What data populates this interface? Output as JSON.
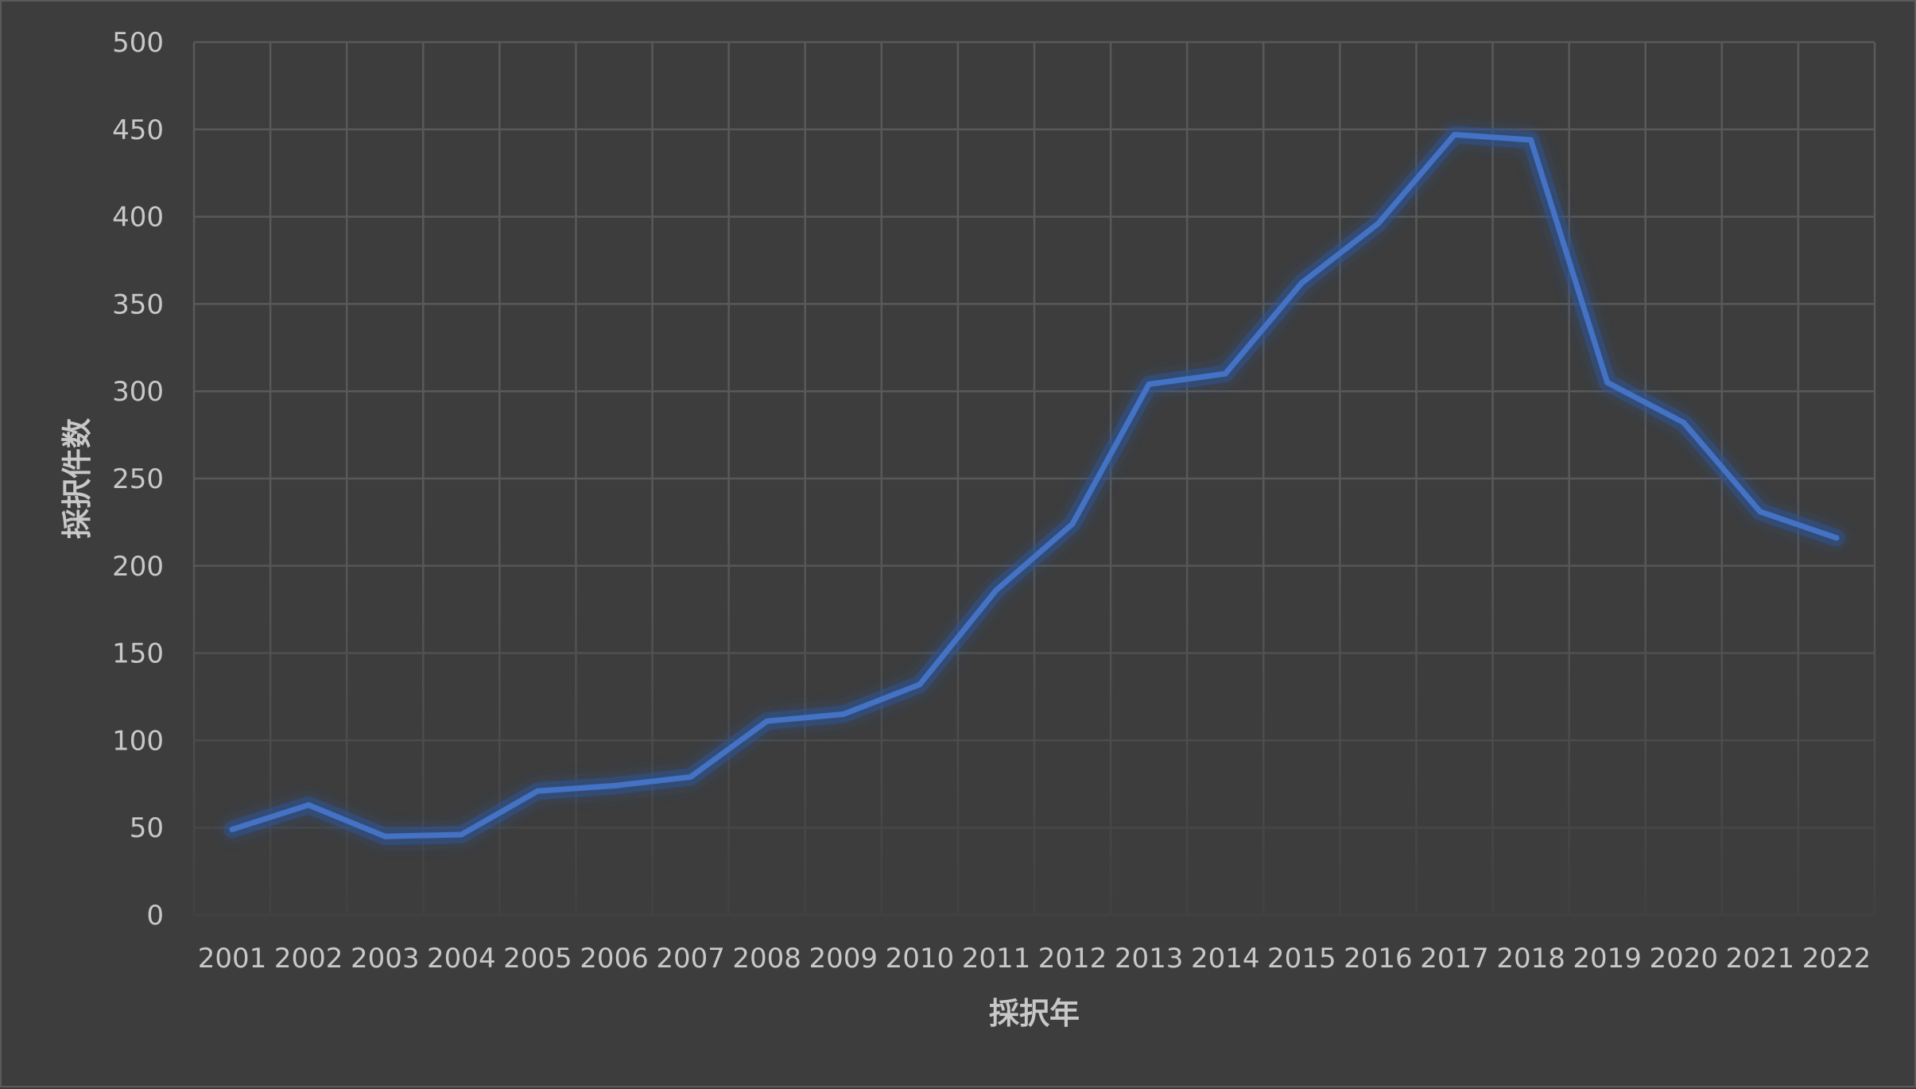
{
  "chart_data": {
    "type": "line",
    "title": "",
    "xlabel": "採択年",
    "ylabel": "採択件数",
    "ylim": [
      0,
      500
    ],
    "yticks": [
      0,
      50,
      100,
      150,
      200,
      250,
      300,
      350,
      400,
      450,
      500
    ],
    "grid": true,
    "legend": "none",
    "categories": [
      "2001",
      "2002",
      "2003",
      "2004",
      "2005",
      "2006",
      "2007",
      "2008",
      "2009",
      "2010",
      "2011",
      "2012",
      "2013",
      "2014",
      "2015",
      "2016",
      "2017",
      "2018",
      "2019",
      "2020",
      "2021",
      "2022"
    ],
    "series": [
      {
        "values": [
          49,
          63,
          45,
          46,
          71,
          74,
          79,
          111,
          115,
          132,
          186,
          224,
          304,
          310,
          362,
          396,
          447,
          444,
          305,
          282,
          231,
          216
        ],
        "color": "#4472c4"
      }
    ],
    "colors": {
      "background": "#3d3d3d",
      "gridline": "#595959",
      "text": "#c8c8c8",
      "line": "#4472c4",
      "glow": "#2f5597"
    }
  }
}
